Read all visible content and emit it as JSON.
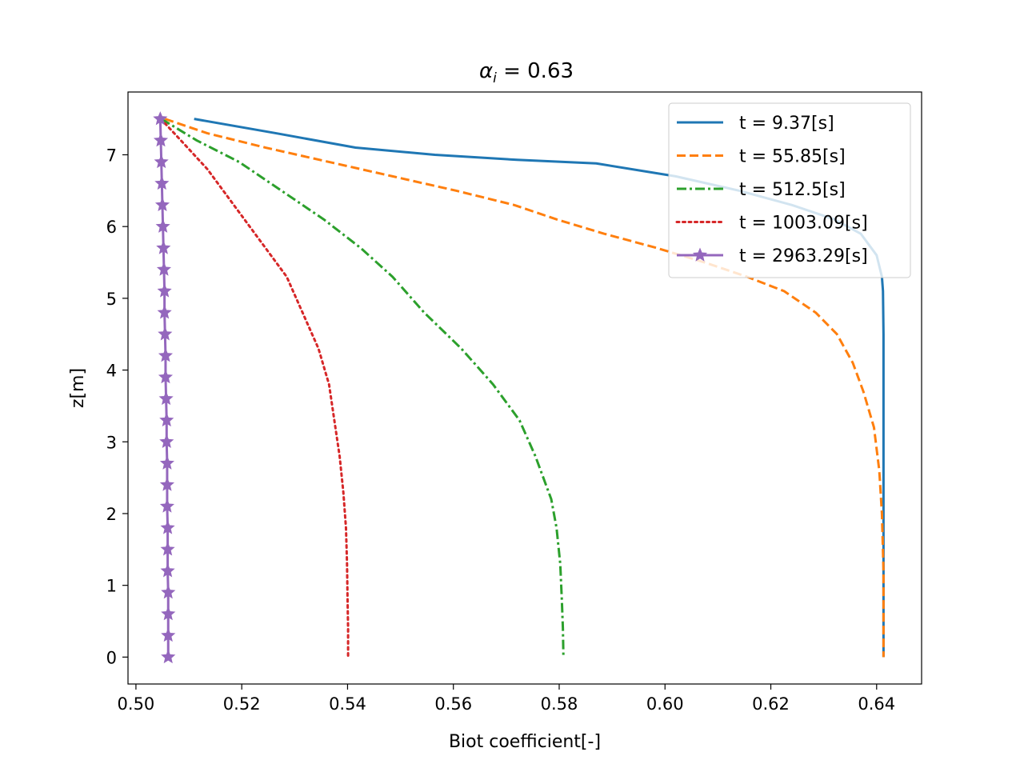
{
  "chart_data": {
    "type": "line",
    "title_main": "α",
    "title_sub": "i",
    "title_rest": " =  0.63",
    "xlabel": "Biot coefficient[-]",
    "ylabel": "z[m]",
    "xlim": [
      0.4985,
      0.6485
    ],
    "ylim": [
      -0.375,
      7.875
    ],
    "xticks": [
      0.5,
      0.52,
      0.54,
      0.56,
      0.58,
      0.6,
      0.62,
      0.64
    ],
    "xtick_labels": [
      "0.50",
      "0.52",
      "0.54",
      "0.56",
      "0.58",
      "0.60",
      "0.62",
      "0.64"
    ],
    "yticks": [
      0,
      1,
      2,
      3,
      4,
      5,
      6,
      7
    ],
    "ytick_labels": [
      "0",
      "1",
      "2",
      "3",
      "4",
      "5",
      "6",
      "7"
    ],
    "grid": false,
    "legend_position": "top-right",
    "series": [
      {
        "name": "t = 9.37[s]",
        "color": "#1f77b4",
        "dash": "solid",
        "marker": "none",
        "points": [
          [
            0.511,
            7.5
          ],
          [
            0.5265,
            7.3
          ],
          [
            0.5415,
            7.1
          ],
          [
            0.5565,
            7.0
          ],
          [
            0.572,
            6.93
          ],
          [
            0.587,
            6.88
          ],
          [
            0.602,
            6.7
          ],
          [
            0.614,
            6.5
          ],
          [
            0.624,
            6.3
          ],
          [
            0.632,
            6.1
          ],
          [
            0.637,
            5.9
          ],
          [
            0.64,
            5.6
          ],
          [
            0.641,
            5.3
          ],
          [
            0.6412,
            5.1
          ],
          [
            0.6413,
            4.5
          ],
          [
            0.6413,
            3.0
          ],
          [
            0.6413,
            1.5
          ],
          [
            0.6413,
            0.0
          ]
        ]
      },
      {
        "name": "t = 55.85[s]",
        "color": "#ff7f0e",
        "dash": "dashed",
        "marker": "none",
        "points": [
          [
            0.5055,
            7.5
          ],
          [
            0.5135,
            7.3
          ],
          [
            0.5245,
            7.1
          ],
          [
            0.5365,
            6.9
          ],
          [
            0.5485,
            6.7
          ],
          [
            0.5605,
            6.5
          ],
          [
            0.5715,
            6.3
          ],
          [
            0.5795,
            6.1
          ],
          [
            0.5885,
            5.9
          ],
          [
            0.5985,
            5.7
          ],
          [
            0.6075,
            5.5
          ],
          [
            0.6155,
            5.3
          ],
          [
            0.6225,
            5.1
          ],
          [
            0.6285,
            4.8
          ],
          [
            0.6325,
            4.5
          ],
          [
            0.6355,
            4.1
          ],
          [
            0.6375,
            3.7
          ],
          [
            0.6395,
            3.2
          ],
          [
            0.6405,
            2.6
          ],
          [
            0.641,
            2.0
          ],
          [
            0.6413,
            1.2
          ],
          [
            0.6413,
            0.0
          ]
        ]
      },
      {
        "name": "t = 512.5[s]",
        "color": "#2ca02c",
        "dash": "dashdot",
        "marker": "none",
        "points": [
          [
            0.5048,
            7.5
          ],
          [
            0.5115,
            7.2
          ],
          [
            0.5195,
            6.9
          ],
          [
            0.5275,
            6.5
          ],
          [
            0.5355,
            6.1
          ],
          [
            0.5425,
            5.7
          ],
          [
            0.5485,
            5.3
          ],
          [
            0.5545,
            4.8
          ],
          [
            0.5615,
            4.3
          ],
          [
            0.5675,
            3.8
          ],
          [
            0.5725,
            3.3
          ],
          [
            0.5755,
            2.8
          ],
          [
            0.5785,
            2.2
          ],
          [
            0.5795,
            1.8
          ],
          [
            0.5802,
            1.3
          ],
          [
            0.5805,
            0.8
          ],
          [
            0.5807,
            0.4
          ],
          [
            0.5808,
            0.0
          ]
        ]
      },
      {
        "name": "t = 1003.09[s]",
        "color": "#d62728",
        "dash": "dotted",
        "marker": "none",
        "points": [
          [
            0.5047,
            7.5
          ],
          [
            0.5085,
            7.2
          ],
          [
            0.5135,
            6.8
          ],
          [
            0.5185,
            6.3
          ],
          [
            0.5235,
            5.8
          ],
          [
            0.5285,
            5.3
          ],
          [
            0.5315,
            4.8
          ],
          [
            0.5345,
            4.3
          ],
          [
            0.5365,
            3.8
          ],
          [
            0.5375,
            3.3
          ],
          [
            0.5385,
            2.8
          ],
          [
            0.5392,
            2.3
          ],
          [
            0.5397,
            1.8
          ],
          [
            0.5399,
            1.3
          ],
          [
            0.54,
            0.8
          ],
          [
            0.5401,
            0.4
          ],
          [
            0.5401,
            0.0
          ]
        ]
      },
      {
        "name": "t = 2963.29[s]",
        "color": "#9467bd",
        "dash": "solid",
        "marker": "star",
        "points": [
          [
            0.5046,
            7.5
          ],
          [
            0.5047,
            7.2
          ],
          [
            0.5048,
            6.9
          ],
          [
            0.5049,
            6.6
          ],
          [
            0.505,
            6.3
          ],
          [
            0.5051,
            6.0
          ],
          [
            0.5052,
            5.7
          ],
          [
            0.5053,
            5.4
          ],
          [
            0.5054,
            5.1
          ],
          [
            0.5054,
            4.8
          ],
          [
            0.5055,
            4.5
          ],
          [
            0.5056,
            4.2
          ],
          [
            0.5056,
            3.9
          ],
          [
            0.5057,
            3.6
          ],
          [
            0.5058,
            3.3
          ],
          [
            0.5058,
            3.0
          ],
          [
            0.5059,
            2.7
          ],
          [
            0.5059,
            2.4
          ],
          [
            0.5059,
            2.1
          ],
          [
            0.506,
            1.8
          ],
          [
            0.506,
            1.5
          ],
          [
            0.506,
            1.2
          ],
          [
            0.5061,
            0.9
          ],
          [
            0.5061,
            0.6
          ],
          [
            0.5061,
            0.3
          ],
          [
            0.5061,
            0.0
          ]
        ]
      }
    ]
  }
}
